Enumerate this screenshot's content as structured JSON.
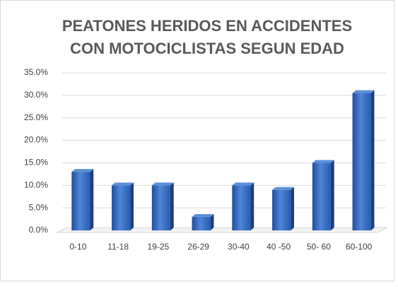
{
  "chart_data": {
    "type": "bar3d",
    "title": [
      "PEATONES HERIDOS EN ACCIDENTES",
      "CON MOTOCICLISTAS SEGUN EDAD"
    ],
    "categories": [
      "0-10",
      "11-18",
      "19-25",
      "26-29",
      "30-40",
      "40 -50",
      "50- 60",
      "60-100"
    ],
    "values": [
      13,
      10,
      10,
      3,
      10,
      9,
      15,
      30.5
    ],
    "color": "#2e62b8",
    "ylim": [
      0,
      35
    ],
    "yticks": [
      {
        "value": 0,
        "label": "0.0%"
      },
      {
        "value": 5,
        "label": "5.0%"
      },
      {
        "value": 10,
        "label": "10.0%"
      },
      {
        "value": 15,
        "label": "15.0%"
      },
      {
        "value": 20,
        "label": "20.0%"
      },
      {
        "value": 25,
        "label": "25.0%"
      },
      {
        "value": 30,
        "label": "30.0%"
      },
      {
        "value": 35,
        "label": "35.0%"
      }
    ],
    "grid": true
  }
}
